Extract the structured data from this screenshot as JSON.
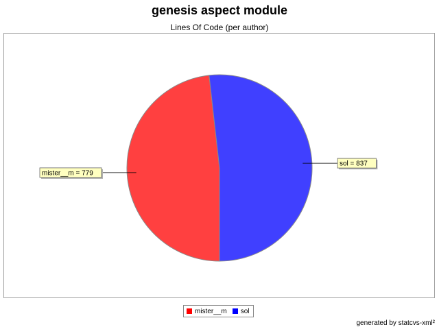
{
  "header": {
    "title": "genesis aspect module",
    "subtitle": "Lines Of Code (per author)"
  },
  "chart_data": {
    "type": "pie",
    "title": "genesis aspect module",
    "subtitle": "Lines Of Code (per author)",
    "slices": [
      {
        "name": "mister__m",
        "value": 779,
        "color": "#ff4040",
        "label": "mister__m = 779"
      },
      {
        "name": "sol",
        "value": 837,
        "color": "#4040ff",
        "label": "sol = 837"
      }
    ],
    "legend_position": "bottom"
  },
  "legend": {
    "items": [
      {
        "label": "mister__m",
        "color": "#ff0000"
      },
      {
        "label": "sol",
        "color": "#0000ff"
      }
    ]
  },
  "footer": {
    "text": "generated by statcvs-xml²"
  }
}
